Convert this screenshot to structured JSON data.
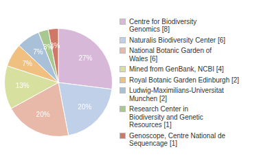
{
  "chart_data": {
    "type": "pie",
    "categories": [
      "Centre for Biodiversity\nGenomics [8]",
      "Naturalis Biodiversity Center [6]",
      "National Botanic Garden of\nWales [6]",
      "Mined from GenBank, NCBI [4]",
      "Royal Botanic Garden Edinburgh [2]",
      "Ludwig-Maximilians-Universitat\nMunchen [2]",
      "Research Center in\nBiodiversity and Genetic\nResources [1]",
      "Genoscope, Centre National de\nSequencage [1]"
    ],
    "values": [
      27,
      20,
      20,
      13,
      7,
      7,
      3,
      3
    ],
    "value_labels": [
      "27%",
      "20%",
      "20%",
      "13%",
      "7%",
      "7%",
      "3%",
      "3%"
    ],
    "colors": [
      "#d8b8d8",
      "#c0d0e8",
      "#e8b8a8",
      "#d8e0a0",
      "#f0c080",
      "#a8c0d8",
      "#a8c890",
      "#d07868"
    ],
    "data_labels": true,
    "legend": "right"
  }
}
